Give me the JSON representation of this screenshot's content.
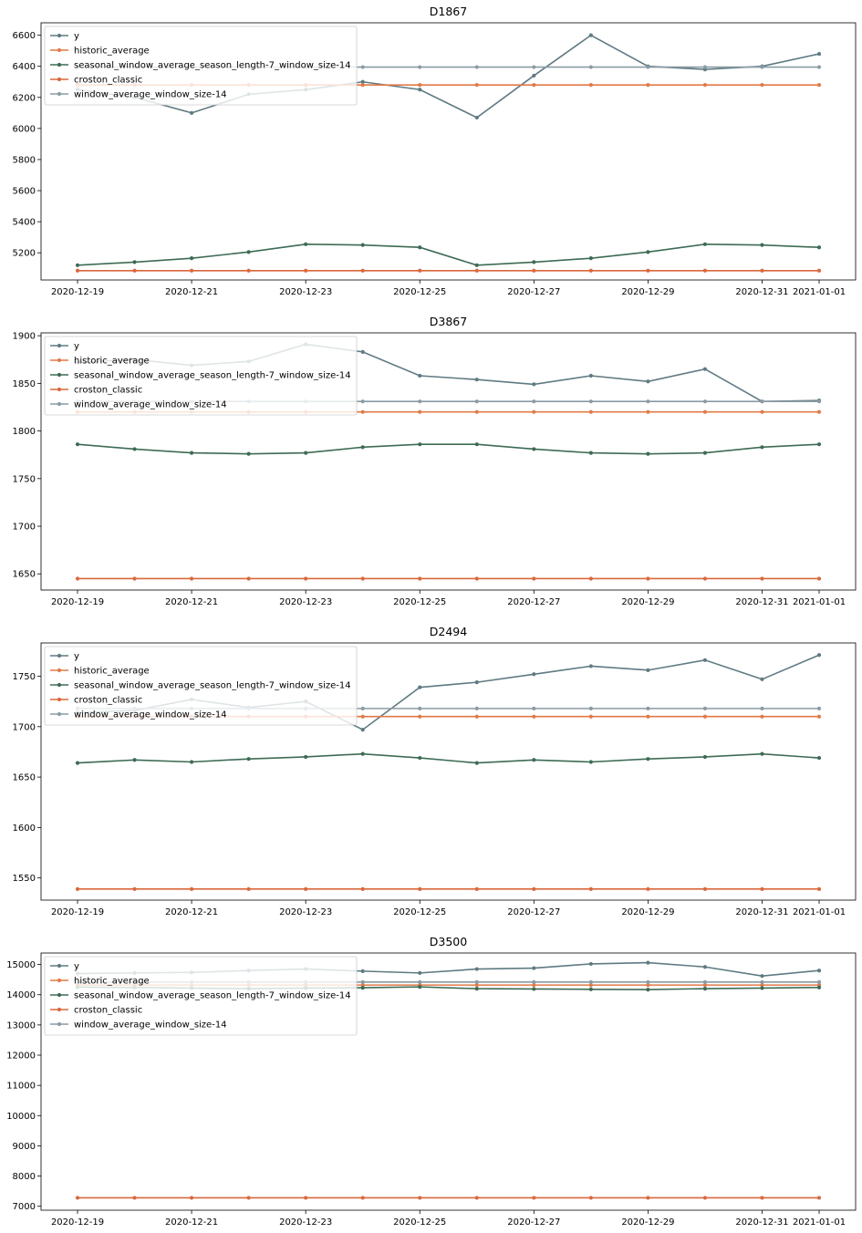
{
  "colors": {
    "y": "#5f7a82",
    "historic_average": "#e07a47",
    "seasonal_window_average_season_length-7_window_size-14": "#3d6b55",
    "croston_classic": "#d9683c",
    "window_average_window_size-14": "#8a9ba5",
    "forecast_trace": "#d8d0a0"
  },
  "chart_data": [
    {
      "type": "line",
      "title": "D1867",
      "x": [
        "2020-12-19",
        "2020-12-20",
        "2020-12-21",
        "2020-12-22",
        "2020-12-23",
        "2020-12-24",
        "2020-12-25",
        "2020-12-26",
        "2020-12-27",
        "2020-12-28",
        "2020-12-29",
        "2020-12-30",
        "2020-12-31",
        "2021-01-01"
      ],
      "x_ticks": [
        "2020-12-19",
        "2020-12-21",
        "2020-12-23",
        "2020-12-25",
        "2020-12-27",
        "2020-12-29",
        "2020-12-31",
        "2021-01-01"
      ],
      "y_ticks": [
        5200,
        5400,
        5600,
        5800,
        6000,
        6200,
        6400,
        6600
      ],
      "ylim": [
        5025,
        6680
      ],
      "legend_position": "upper-left",
      "series": [
        {
          "name": "y",
          "values": [
            6250,
            6200,
            6100,
            6220,
            6250,
            6300,
            6250,
            6070,
            6340,
            6600,
            6400,
            6380,
            6400,
            6480
          ]
        },
        {
          "name": "historic_average",
          "values": [
            6280,
            6280,
            6280,
            6280,
            6280,
            6280,
            6280,
            6280,
            6280,
            6280,
            6280,
            6280,
            6280,
            6280
          ]
        },
        {
          "name": "seasonal_window_average_season_length-7_window_size-14",
          "values": [
            5120,
            5140,
            5165,
            5205,
            5255,
            5250,
            5235,
            5120,
            5140,
            5165,
            5205,
            5255,
            5250,
            5235
          ]
        },
        {
          "name": "croston_classic",
          "values": [
            5085,
            5085,
            5085,
            5085,
            5085,
            5085,
            5085,
            5085,
            5085,
            5085,
            5085,
            5085,
            5085,
            5085
          ]
        },
        {
          "name": "window_average_window_size-14",
          "values": [
            6395,
            6395,
            6395,
            6395,
            6395,
            6395,
            6395,
            6395,
            6395,
            6395,
            6395,
            6395,
            6395,
            6395
          ]
        }
      ]
    },
    {
      "type": "line",
      "title": "D3867",
      "x": [
        "2020-12-19",
        "2020-12-20",
        "2020-12-21",
        "2020-12-22",
        "2020-12-23",
        "2020-12-24",
        "2020-12-25",
        "2020-12-26",
        "2020-12-27",
        "2020-12-28",
        "2020-12-29",
        "2020-12-30",
        "2020-12-31",
        "2021-01-01"
      ],
      "x_ticks": [
        "2020-12-19",
        "2020-12-21",
        "2020-12-23",
        "2020-12-25",
        "2020-12-27",
        "2020-12-29",
        "2020-12-31",
        "2021-01-01"
      ],
      "y_ticks": [
        1650,
        1700,
        1750,
        1800,
        1850,
        1900
      ],
      "ylim": [
        1633,
        1903
      ],
      "legend_position": "upper-left",
      "series": [
        {
          "name": "y",
          "values": [
            1872,
            1875,
            1869,
            1873,
            1891,
            1883,
            1858,
            1854,
            1849,
            1858,
            1852,
            1865,
            1831,
            1832
          ]
        },
        {
          "name": "historic_average",
          "values": [
            1820,
            1820,
            1820,
            1820,
            1820,
            1820,
            1820,
            1820,
            1820,
            1820,
            1820,
            1820,
            1820,
            1820
          ]
        },
        {
          "name": "seasonal_window_average_season_length-7_window_size-14",
          "values": [
            1786,
            1781,
            1777,
            1776,
            1777,
            1783,
            1786,
            1786,
            1781,
            1777,
            1776,
            1777,
            1783,
            1786
          ]
        },
        {
          "name": "croston_classic",
          "values": [
            1645,
            1645,
            1645,
            1645,
            1645,
            1645,
            1645,
            1645,
            1645,
            1645,
            1645,
            1645,
            1645,
            1645
          ]
        },
        {
          "name": "window_average_window_size-14",
          "values": [
            1831,
            1831,
            1831,
            1831,
            1831,
            1831,
            1831,
            1831,
            1831,
            1831,
            1831,
            1831,
            1831,
            1831
          ]
        }
      ]
    },
    {
      "type": "line",
      "title": "D2494",
      "x": [
        "2020-12-19",
        "2020-12-20",
        "2020-12-21",
        "2020-12-22",
        "2020-12-23",
        "2020-12-24",
        "2020-12-25",
        "2020-12-26",
        "2020-12-27",
        "2020-12-28",
        "2020-12-29",
        "2020-12-30",
        "2020-12-31",
        "2021-01-01"
      ],
      "x_ticks": [
        "2020-12-19",
        "2020-12-21",
        "2020-12-23",
        "2020-12-25",
        "2020-12-27",
        "2020-12-29",
        "2020-12-31",
        "2021-01-01"
      ],
      "y_ticks": [
        1550,
        1600,
        1650,
        1700,
        1750
      ],
      "ylim": [
        1528,
        1783
      ],
      "legend_position": "upper-left",
      "series": [
        {
          "name": "y",
          "values": [
            1714,
            1716,
            1727,
            1719,
            1725,
            1697,
            1739,
            1744,
            1752,
            1760,
            1756,
            1766,
            1747,
            1771
          ]
        },
        {
          "name": "historic_average",
          "values": [
            1710,
            1710,
            1710,
            1710,
            1710,
            1710,
            1710,
            1710,
            1710,
            1710,
            1710,
            1710,
            1710,
            1710
          ]
        },
        {
          "name": "seasonal_window_average_season_length-7_window_size-14",
          "values": [
            1664,
            1667,
            1665,
            1668,
            1670,
            1673,
            1669,
            1664,
            1667,
            1665,
            1668,
            1670,
            1673,
            1669
          ]
        },
        {
          "name": "croston_classic",
          "values": [
            1539,
            1539,
            1539,
            1539,
            1539,
            1539,
            1539,
            1539,
            1539,
            1539,
            1539,
            1539,
            1539,
            1539
          ]
        },
        {
          "name": "window_average_window_size-14",
          "values": [
            1718,
            1718,
            1718,
            1718,
            1718,
            1718,
            1718,
            1718,
            1718,
            1718,
            1718,
            1718,
            1718,
            1718
          ]
        }
      ]
    },
    {
      "type": "line",
      "title": "D3500",
      "x": [
        "2020-12-19",
        "2020-12-20",
        "2020-12-21",
        "2020-12-22",
        "2020-12-23",
        "2020-12-24",
        "2020-12-25",
        "2020-12-26",
        "2020-12-27",
        "2020-12-28",
        "2020-12-29",
        "2020-12-30",
        "2020-12-31",
        "2021-01-01"
      ],
      "x_ticks": [
        "2020-12-19",
        "2020-12-21",
        "2020-12-23",
        "2020-12-25",
        "2020-12-27",
        "2020-12-29",
        "2020-12-31",
        "2021-01-01"
      ],
      "y_ticks": [
        7000,
        8000,
        9000,
        10000,
        11000,
        12000,
        13000,
        14000,
        15000
      ],
      "ylim": [
        6870,
        15380
      ],
      "legend_position": "upper-left",
      "series": [
        {
          "name": "y",
          "values": [
            14700,
            14720,
            14740,
            14800,
            14850,
            14780,
            14720,
            14850,
            14880,
            15020,
            15060,
            14920,
            14620,
            14800
          ]
        },
        {
          "name": "historic_average",
          "values": [
            14320,
            14320,
            14320,
            14320,
            14320,
            14320,
            14320,
            14320,
            14320,
            14320,
            14320,
            14320,
            14320,
            14320
          ]
        },
        {
          "name": "seasonal_window_average_season_length-7_window_size-14",
          "values": [
            14250,
            14240,
            14220,
            14200,
            14220,
            14230,
            14260,
            14200,
            14190,
            14180,
            14170,
            14200,
            14220,
            14240
          ]
        },
        {
          "name": "croston_classic",
          "values": [
            7280,
            7280,
            7280,
            7280,
            7280,
            7280,
            7280,
            7280,
            7280,
            7280,
            7280,
            7280,
            7280,
            7280
          ]
        },
        {
          "name": "window_average_window_size-14",
          "values": [
            14420,
            14420,
            14420,
            14420,
            14420,
            14420,
            14420,
            14420,
            14420,
            14420,
            14420,
            14420,
            14420,
            14420
          ]
        }
      ]
    }
  ]
}
